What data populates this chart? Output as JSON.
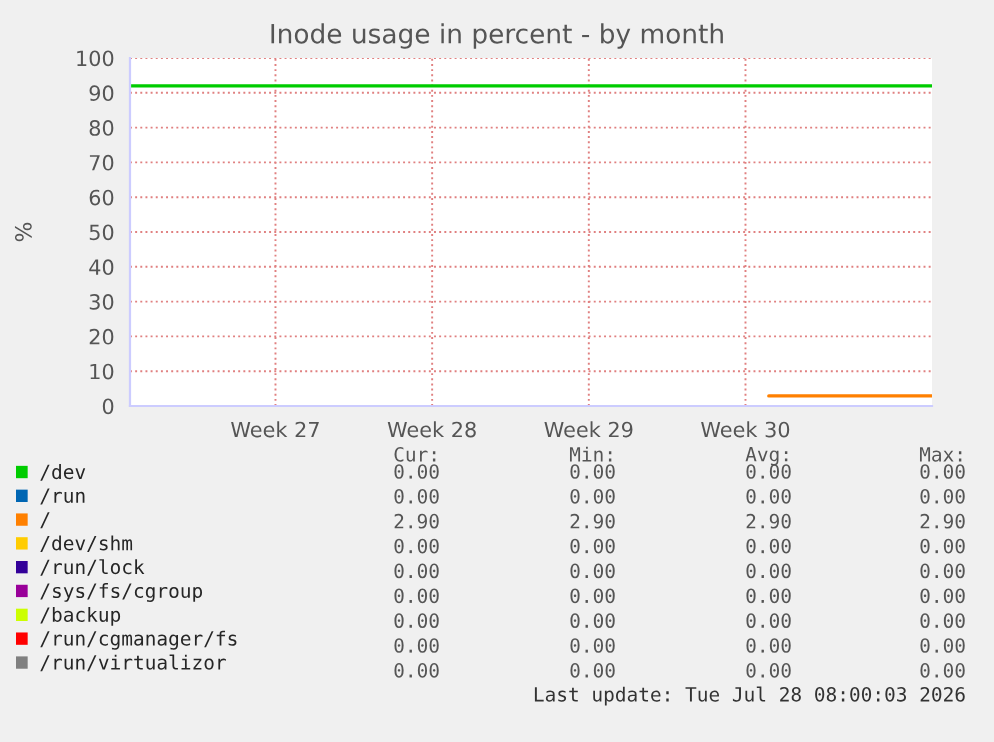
{
  "chart_data": {
    "type": "line",
    "title": "Inode usage in percent - by month",
    "ylabel": "%",
    "xlim": [
      "2026-06-22T12:00",
      "2026-07-28T08:00"
    ],
    "ylim": [
      0,
      100
    ],
    "xticks": [
      {
        "value": "2026-06-29",
        "label": "Week 27"
      },
      {
        "value": "2026-07-06",
        "label": "Week 28"
      },
      {
        "value": "2026-07-13",
        "label": "Week 29"
      },
      {
        "value": "2026-07-20",
        "label": "Week 30"
      }
    ],
    "yticks": [
      0,
      10,
      20,
      30,
      40,
      50,
      60,
      70,
      80,
      90,
      100
    ],
    "grid": true,
    "legend": "bottom",
    "line_style": "solid",
    "marker": "none",
    "ref_lines": [
      {
        "axis": "y",
        "value": 92,
        "color": "#00cc00"
      }
    ],
    "series": [
      {
        "name": "/dev",
        "color": "#00cc00"
      },
      {
        "name": "/run",
        "color": "#0066b3"
      },
      {
        "name": "/",
        "color": "#ff8000",
        "x": [
          "2026-07-21T01:00",
          "2026-07-28T08:00"
        ],
        "values": [
          2.9,
          2.9
        ]
      },
      {
        "name": "/dev/shm",
        "color": "#ffcc00"
      },
      {
        "name": "/run/lock",
        "color": "#330099"
      },
      {
        "name": "/sys/fs/cgroup",
        "color": "#990099"
      },
      {
        "name": "/backup",
        "color": "#ccff00"
      },
      {
        "name": "/run/cgmanager/fs",
        "color": "#ff0000"
      },
      {
        "name": "/run/virtualizor",
        "color": "#808080"
      }
    ],
    "annotations": [
      "Cur:",
      "Min:",
      "Avg:",
      "Max:",
      "0.00",
      "0.00",
      "0.00",
      "0.00",
      "0.00",
      "0.00",
      "0.00",
      "0.00",
      "2.90",
      "2.90",
      "2.90",
      "2.90",
      "0.00",
      "0.00",
      "0.00",
      "0.00",
      "0.00",
      "0.00",
      "0.00",
      "0.00",
      "0.00",
      "0.00",
      "0.00",
      "0.00",
      "0.00",
      "0.00",
      "0.00",
      "0.00",
      "0.00",
      "0.00",
      "0.00",
      "0.00",
      "0.00",
      "0.00",
      "0.00",
      "0.00",
      "Last update: Tue Jul 28 08:00:03 2026"
    ]
  }
}
